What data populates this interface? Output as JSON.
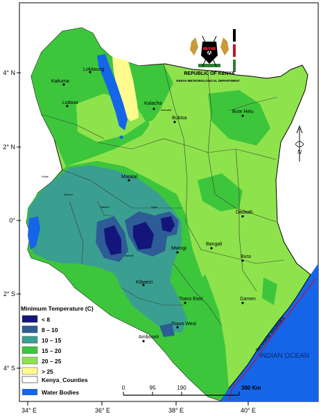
{
  "map": {
    "country_labels": {
      "republic": "REPUBLIC OF KENYA",
      "department": "KENYA METEOROLOGICAL DEPARTMENT"
    },
    "latitude_labels": [
      "4° N",
      "2° N",
      "0°",
      "2° S",
      "4° S"
    ],
    "longitude_labels": [
      "34° E",
      "36° E",
      "38° E",
      "40° E"
    ],
    "towns": [
      "Lokitaung",
      "Kakuma",
      "Lodwar",
      "Kalacha",
      "Bubisa",
      "Bute Helu",
      "Marsabit",
      "Maralal",
      "Dadaab",
      "Bangali",
      "Mwingi",
      "Bura",
      "Garsen",
      "Tsavo East",
      "Kibwezi",
      "Amboseli",
      "Tsavo West",
      "Kitale",
      "Eldoret",
      "Nakuru",
      "Nyeri",
      "Nairobi"
    ],
    "ocean_label": "INDIAN OCEAN",
    "boundary_label": "Terrestrial Boundary",
    "north_label": "N"
  },
  "legend": {
    "title": "Minimum Temperature (C)",
    "classes": [
      {
        "label": "< 8",
        "color": "#14157a"
      },
      {
        "label": "8 – 10",
        "color": "#2e5c96"
      },
      {
        "label": "10 – 15",
        "color": "#3a9f90"
      },
      {
        "label": "15 – 20",
        "color": "#3dc63c"
      },
      {
        "label": "20 – 25",
        "color": "#8ee34c"
      },
      {
        "label": "> 25",
        "color": "#fffb8f"
      }
    ],
    "counties_label": "Kenya_Counties",
    "water_label": "Water Bodies",
    "water_color": "#1565e8"
  },
  "scale_bar": {
    "ticks": [
      "0",
      "95",
      "190",
      "380 Km"
    ]
  }
}
